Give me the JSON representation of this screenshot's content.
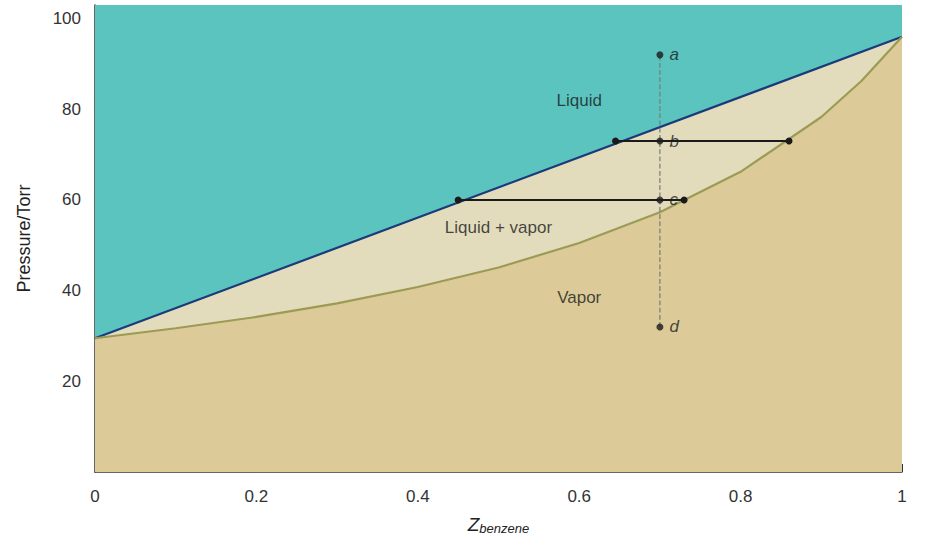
{
  "chart_data": {
    "type": "line",
    "xlabel": "Z",
    "xlabel_subscript": "benzene",
    "ylabel": "Pressure/Torr",
    "xlim": [
      0,
      1
    ],
    "xticks": [
      0,
      0.2,
      0.4,
      0.6,
      0.8,
      1
    ],
    "ylim": [
      0,
      103
    ],
    "yticks": [
      20,
      40,
      60,
      80,
      100
    ],
    "grid": false,
    "series": [
      {
        "type": "line",
        "color": "#1b3a7a",
        "line_style": "solid",
        "marker": "none",
        "x": [
          0,
          1
        ],
        "values": [
          29.5,
          96
        ]
      },
      {
        "type": "line",
        "color": "#9b9b55",
        "line_style": "solid",
        "marker": "none",
        "x": [
          0,
          0.1,
          0.2,
          0.3,
          0.4,
          0.5,
          0.6,
          0.7,
          0.8,
          0.9,
          0.95,
          1
        ],
        "values": [
          29.5,
          31.7,
          34.2,
          37.2,
          40.8,
          45.1,
          50.5,
          57.3,
          66.2,
          78.3,
          86.3,
          96
        ]
      },
      {
        "type": "line",
        "color": "#1a1a1a",
        "line_style": "solid",
        "marker": "circle",
        "x": [
          0.645,
          0.86
        ],
        "values": [
          73,
          73
        ]
      },
      {
        "type": "line",
        "color": "#1a1a1a",
        "line_style": "solid",
        "marker": "circle",
        "x": [
          0.45,
          0.73
        ],
        "values": [
          60,
          60
        ]
      },
      {
        "type": "line",
        "color": "#7a7a7a",
        "line_style": "dashed",
        "marker": "none",
        "x": [
          0.7,
          0.7
        ],
        "values": [
          32,
          92
        ]
      },
      {
        "type": "scatter",
        "color": "#1a1a1a",
        "marker": "circle",
        "x": [
          0.7,
          0.7,
          0.7,
          0.7
        ],
        "values": [
          92,
          73,
          60,
          32
        ],
        "point_labels": [
          "a",
          "b",
          "c",
          "d"
        ]
      }
    ],
    "annotations": [
      {
        "text": "Liquid",
        "x": 0.6,
        "y": 82
      },
      {
        "text": "Liquid + vapor",
        "x": 0.5,
        "y": 54
      },
      {
        "text": "Vapor",
        "x": 0.6,
        "y": 38.5
      }
    ]
  }
}
